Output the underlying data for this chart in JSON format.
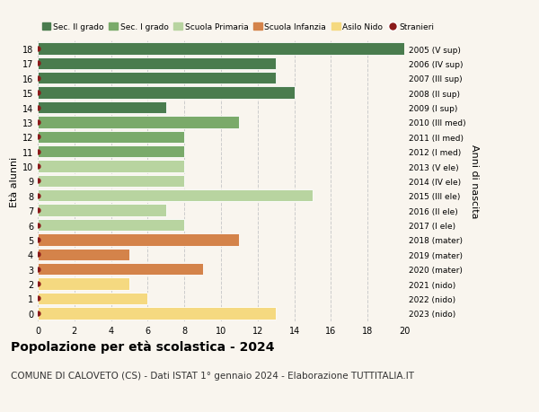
{
  "ages": [
    18,
    17,
    16,
    15,
    14,
    13,
    12,
    11,
    10,
    9,
    8,
    7,
    6,
    5,
    4,
    3,
    2,
    1,
    0
  ],
  "values": [
    20,
    13,
    13,
    14,
    7,
    11,
    8,
    8,
    8,
    8,
    15,
    7,
    8,
    11,
    5,
    9,
    5,
    6,
    13
  ],
  "right_labels": [
    "2005 (V sup)",
    "2006 (IV sup)",
    "2007 (III sup)",
    "2008 (II sup)",
    "2009 (I sup)",
    "2010 (III med)",
    "2011 (II med)",
    "2012 (I med)",
    "2013 (V ele)",
    "2014 (IV ele)",
    "2015 (III ele)",
    "2016 (II ele)",
    "2017 (I ele)",
    "2018 (mater)",
    "2019 (mater)",
    "2020 (mater)",
    "2021 (nido)",
    "2022 (nido)",
    "2023 (nido)"
  ],
  "colors": [
    "#4a7c4e",
    "#4a7c4e",
    "#4a7c4e",
    "#4a7c4e",
    "#4a7c4e",
    "#7aaa6a",
    "#7aaa6a",
    "#7aaa6a",
    "#b8d4a0",
    "#b8d4a0",
    "#b8d4a0",
    "#b8d4a0",
    "#b8d4a0",
    "#d4834a",
    "#d4834a",
    "#d4834a",
    "#f5d980",
    "#f5d980",
    "#f5d980"
  ],
  "dot_color": "#8b1a1a",
  "legend_items": [
    {
      "label": "Sec. II grado",
      "color": "#4a7c4e"
    },
    {
      "label": "Sec. I grado",
      "color": "#7aaa6a"
    },
    {
      "label": "Scuola Primaria",
      "color": "#b8d4a0"
    },
    {
      "label": "Scuola Infanzia",
      "color": "#d4834a"
    },
    {
      "label": "Asilo Nido",
      "color": "#f5d980"
    },
    {
      "label": "Stranieri",
      "color": "#8b1a1a"
    }
  ],
  "xlabel": "",
  "ylabel": "Età alunni",
  "right_ylabel": "Anni di nascita",
  "title": "Popolazione per età scolastica - 2024",
  "subtitle": "COMUNE DI CALOVETO (CS) - Dati ISTAT 1° gennaio 2024 - Elaborazione TUTTITALIA.IT",
  "xlim": [
    0,
    20
  ],
  "xticks": [
    0,
    2,
    4,
    6,
    8,
    10,
    12,
    14,
    16,
    18,
    20
  ],
  "bg_color": "#f9f5ee",
  "title_fontsize": 10,
  "subtitle_fontsize": 7.5,
  "bar_height": 0.82
}
